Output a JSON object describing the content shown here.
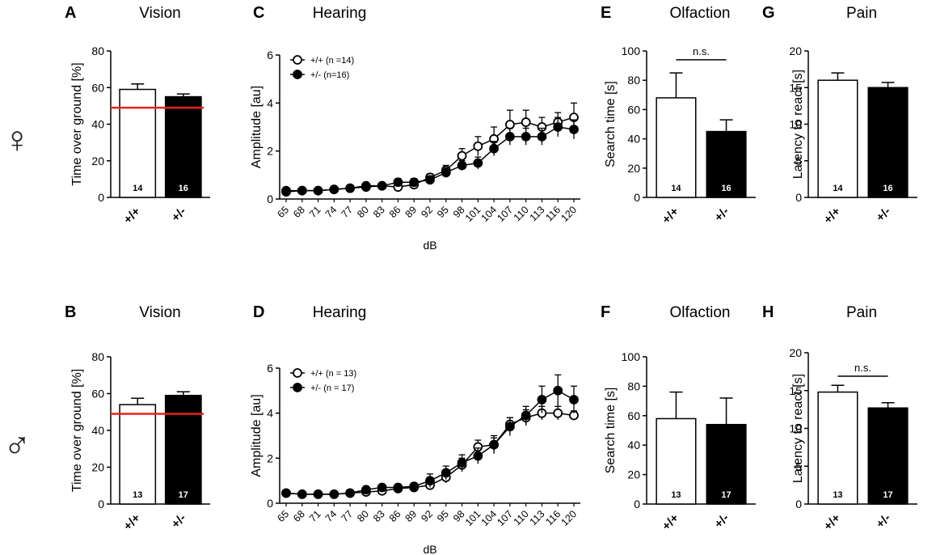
{
  "sex_labels": {
    "female": "♀",
    "male": "♂"
  },
  "chart_data": [
    {
      "id": "A",
      "letter": "A",
      "type": "bar",
      "title": "Vision",
      "ylabel": "Time over ground [%]",
      "ylim": [
        0,
        80
      ],
      "yticks": [
        0,
        20,
        40,
        60,
        80
      ],
      "categories": [
        "+/+",
        "+/-"
      ],
      "values": [
        59,
        55
      ],
      "errors": [
        3,
        1.5
      ],
      "n": [
        "14",
        "16"
      ],
      "colors": [
        "#ffffff",
        "#000000"
      ],
      "refline": 49,
      "refcolor": "#e8221b",
      "sig": null
    },
    {
      "id": "B",
      "letter": "B",
      "type": "bar",
      "title": "Vision",
      "ylabel": "Time over ground [%]",
      "ylim": [
        0,
        80
      ],
      "yticks": [
        0,
        20,
        40,
        60,
        80
      ],
      "categories": [
        "+/+",
        "+/-"
      ],
      "values": [
        54,
        59
      ],
      "errors": [
        3.5,
        2
      ],
      "n": [
        "13",
        "17"
      ],
      "colors": [
        "#ffffff",
        "#000000"
      ],
      "refline": 49,
      "refcolor": "#e8221b",
      "sig": null
    },
    {
      "id": "C",
      "letter": "C",
      "type": "line",
      "title": "Hearing",
      "ylabel": "Amplitude [au]",
      "xlabel": "dB",
      "ylim": [
        0,
        6
      ],
      "yticks": [
        0,
        2,
        4,
        6
      ],
      "x": [
        "65",
        "68",
        "71",
        "74",
        "77",
        "80",
        "83",
        "86",
        "89",
        "92",
        "95",
        "98",
        "101",
        "104",
        "107",
        "110",
        "113",
        "116",
        "120"
      ],
      "series": [
        {
          "name": "+/+ (n =14)",
          "fill": "#ffffff",
          "values": [
            0.3,
            0.35,
            0.35,
            0.4,
            0.45,
            0.55,
            0.55,
            0.5,
            0.6,
            0.9,
            1.2,
            1.8,
            2.2,
            2.5,
            3.1,
            3.2,
            3.0,
            3.2,
            3.4
          ],
          "errors": [
            0.1,
            0.1,
            0.1,
            0.1,
            0.1,
            0.1,
            0.1,
            0.1,
            0.1,
            0.15,
            0.2,
            0.3,
            0.4,
            0.5,
            0.6,
            0.5,
            0.4,
            0.4,
            0.6
          ]
        },
        {
          "name": "+/- (n=16)",
          "fill": "#000000",
          "values": [
            0.35,
            0.35,
            0.35,
            0.4,
            0.45,
            0.5,
            0.55,
            0.7,
            0.7,
            0.8,
            1.1,
            1.4,
            1.5,
            2.1,
            2.6,
            2.6,
            2.6,
            3.0,
            2.9
          ],
          "errors": [
            0.1,
            0.1,
            0.1,
            0.1,
            0.1,
            0.1,
            0.1,
            0.15,
            0.15,
            0.15,
            0.2,
            0.2,
            0.25,
            0.3,
            0.35,
            0.35,
            0.35,
            0.4,
            0.4
          ]
        }
      ]
    },
    {
      "id": "D",
      "letter": "D",
      "type": "line",
      "title": "Hearing",
      "ylabel": "Amplitude [au]",
      "xlabel": "dB",
      "ylim": [
        0,
        6
      ],
      "yticks": [
        0,
        2,
        4,
        6
      ],
      "x": [
        "65",
        "68",
        "71",
        "74",
        "77",
        "80",
        "83",
        "86",
        "89",
        "92",
        "95",
        "98",
        "101",
        "104",
        "107",
        "110",
        "113",
        "116",
        "120"
      ],
      "series": [
        {
          "name": "+/+ (n = 13)",
          "fill": "#ffffff",
          "values": [
            0.45,
            0.4,
            0.4,
            0.4,
            0.45,
            0.5,
            0.55,
            0.65,
            0.7,
            0.8,
            1.15,
            1.7,
            2.5,
            2.6,
            3.5,
            3.8,
            4.0,
            4.0,
            3.9
          ],
          "errors": [
            0.1,
            0.1,
            0.1,
            0.1,
            0.1,
            0.1,
            0.1,
            0.1,
            0.15,
            0.2,
            0.25,
            0.3,
            0.3,
            0.3,
            0.3,
            0.35,
            0.3,
            0.3,
            0.2
          ]
        },
        {
          "name": "+/- (n = 17)",
          "fill": "#000000",
          "values": [
            0.45,
            0.4,
            0.4,
            0.4,
            0.45,
            0.6,
            0.7,
            0.7,
            0.75,
            1.0,
            1.35,
            1.8,
            2.1,
            2.6,
            3.4,
            3.9,
            4.6,
            5.0,
            4.6
          ],
          "errors": [
            0.1,
            0.1,
            0.1,
            0.1,
            0.1,
            0.1,
            0.1,
            0.15,
            0.15,
            0.3,
            0.3,
            0.35,
            0.35,
            0.4,
            0.4,
            0.4,
            0.6,
            0.7,
            0.6
          ]
        }
      ]
    },
    {
      "id": "E",
      "letter": "E",
      "type": "bar",
      "title": "Olfaction",
      "ylabel": "Search time [s]",
      "ylim": [
        0,
        100
      ],
      "yticks": [
        0,
        20,
        40,
        60,
        80,
        100
      ],
      "categories": [
        "+/+",
        "+/-"
      ],
      "values": [
        68,
        45
      ],
      "errors": [
        17,
        8
      ],
      "n": [
        "14",
        "16"
      ],
      "colors": [
        "#ffffff",
        "#000000"
      ],
      "refline": null,
      "sig": "n.s."
    },
    {
      "id": "F",
      "letter": "F",
      "type": "bar",
      "title": "Olfaction",
      "ylabel": "Search time [s]",
      "ylim": [
        0,
        100
      ],
      "yticks": [
        0,
        20,
        40,
        60,
        80,
        100
      ],
      "categories": [
        "+/+",
        "+/-"
      ],
      "values": [
        58,
        54
      ],
      "errors": [
        18,
        18
      ],
      "n": [
        "13",
        "17"
      ],
      "colors": [
        "#ffffff",
        "#000000"
      ],
      "refline": null,
      "sig": null
    },
    {
      "id": "G",
      "letter": "G",
      "type": "bar",
      "title": "Pain",
      "ylabel": "Latency to react [s]",
      "ylim": [
        0,
        20
      ],
      "yticks": [
        0,
        5,
        10,
        15,
        20
      ],
      "categories": [
        "+/+",
        "+/-"
      ],
      "values": [
        16,
        15
      ],
      "errors": [
        1,
        0.7
      ],
      "n": [
        "14",
        "16"
      ],
      "colors": [
        "#ffffff",
        "#000000"
      ],
      "refline": null,
      "sig": null
    },
    {
      "id": "H",
      "letter": "H",
      "type": "bar",
      "title": "Pain",
      "ylabel": "Latency to react [s]",
      "ylim": [
        0,
        20
      ],
      "yticks": [
        0,
        5,
        10,
        15,
        20
      ],
      "categories": [
        "+/+",
        "+/-"
      ],
      "values": [
        14.8,
        12.7
      ],
      "errors": [
        0.9,
        0.7
      ],
      "n": [
        "13",
        "17"
      ],
      "colors": [
        "#ffffff",
        "#000000"
      ],
      "refline": null,
      "sig": "n.s."
    }
  ]
}
